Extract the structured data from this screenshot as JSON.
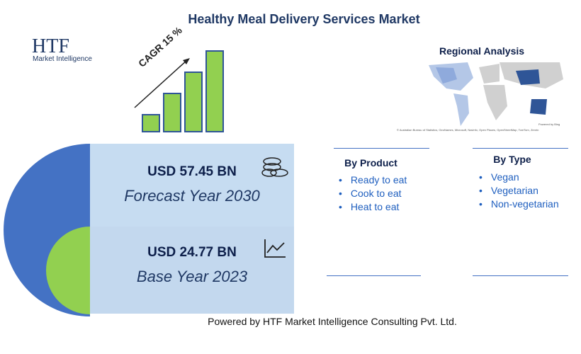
{
  "header": {
    "title": "Healthy Meal Delivery Services Market"
  },
  "logo": {
    "mark": "HTF",
    "text": "Market Intelligence"
  },
  "growth": {
    "label": "CAGR 15 %"
  },
  "map": {
    "title": "Regional Analysis",
    "powered": "Powered by Bing",
    "credits": "© Australian Bureau of Statistics, GeoNames, Microsoft, Navinfo, Open Places, OpenStreetMap, TomTom, Zenrin"
  },
  "forecast": {
    "value": "USD 57.45 BN",
    "label": "Forecast Year 2030"
  },
  "base": {
    "value": "USD 24.77 BN",
    "label": "Base Year 2023"
  },
  "by_product": {
    "title": "By Product",
    "items": [
      "Ready to eat",
      "Cook to eat",
      "Heat to eat"
    ]
  },
  "by_type": {
    "title": "By Type",
    "items": [
      "Vegan",
      "Vegetarian",
      "Non-vegetarian"
    ]
  },
  "footer": {
    "text": "Powered by HTF Market Intelligence Consulting Pvt. Ltd."
  }
}
